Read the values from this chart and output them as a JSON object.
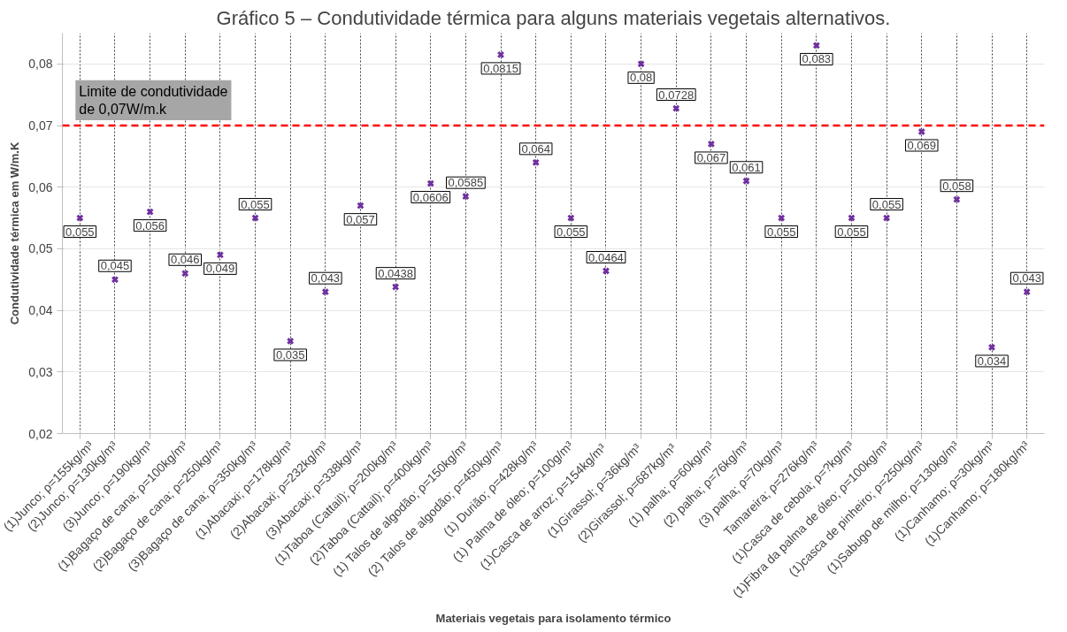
{
  "chart_data": {
    "type": "scatter",
    "title": "Gráfico 5 – Condutividade térmica para alguns materiais vegetais alternativos.",
    "xlabel": "Materiais vegetais para isolamento térmico",
    "ylabel": "Condutividade térmica em W/m.K",
    "categories": [
      "(1)Junco; ρ=155kg/m³",
      "(2)Junco; ρ=130kg/m³",
      "(3)Junco; ρ=190kg/m³",
      "(1)Bagaço de cana; ρ=100kg/m³",
      "(2)Bagaço de cana; ρ=250kg/m³",
      "(3)Bagaço de cana; ρ=350kg/m³",
      "(1)Abacaxi; ρ=178kg/m³",
      "(2)Abacaxi; ρ=232kg/m³",
      "(3)Abacaxi; ρ=338kg/m³",
      "(1)Taboa (Cattail); ρ=200kg/m³",
      "(2)Taboa (Cattail); ρ=400kg/m³",
      "(1) Talos de algodão; ρ=150kg/m³",
      "(2) Talos de algodão; ρ=450kg/m³",
      "(1) Durião; ρ=428kg/m³",
      "(1) Palma de óleo; ρ=100g/m³",
      "(1)Casca de arroz;  ρ=154kg/m³",
      "(1)Girassol;  ρ=36kg/m³",
      "(2)Girassol;  ρ=687kg/m³",
      "(1) palha; ρ=60kg/m³",
      "(2) palha; ρ=76kg/m³",
      "(3) palha; ρ=70kg/m³",
      "Tamareira; ρ=276kg/m³",
      "(1)Casca de cebola; ρ=?kg/m³",
      "(1)Fibra da palma de óleo; ρ=100kg/m³",
      "(1)casca de pinheiro; ρ=250kg/m³",
      "(1)Sabugo de milho; ρ=130kg/m³",
      "(1)Canhamo; ρ=30kg/m³",
      "(1)Canhamo; ρ=180kg/m³"
    ],
    "series": [
      {
        "color": "#7030a0",
        "values": [
          0.055,
          0.045,
          0.056,
          0.046,
          0.049,
          0.055,
          0.035,
          0.043,
          0.057,
          0.0438,
          0.0606,
          0.0585,
          0.0815,
          0.064,
          0.055,
          0.0464,
          0.08,
          0.0728,
          0.067,
          0.061,
          0.055,
          0.083,
          0.055,
          0.055,
          0.069,
          0.058,
          0.034,
          0.043
        ],
        "value_labels": [
          "0,055",
          "0,045",
          "0,056",
          "0,046",
          "0,049",
          "0,055",
          "0,035",
          "0,043",
          "0,057",
          "0,0438",
          "0,0606",
          "0,0585",
          "0,0815",
          "0,064",
          "0,055",
          "0,0464",
          "0,08",
          "0,0728",
          "0,067",
          "0,061",
          "0,055",
          "0,083",
          "0,055",
          "0,055",
          "0,069",
          "0,058",
          "0,034",
          "0,043"
        ]
      }
    ],
    "ylim": [
      0.02,
      0.085
    ],
    "yticks": [
      {
        "value": 0.02,
        "label": "0,02"
      },
      {
        "value": 0.03,
        "label": "0,03"
      },
      {
        "value": 0.04,
        "label": "0,04"
      },
      {
        "value": 0.05,
        "label": "0,05"
      },
      {
        "value": 0.06,
        "label": "0,06"
      },
      {
        "value": 0.07,
        "label": "0,07"
      },
      {
        "value": 0.08,
        "label": "0,08"
      }
    ],
    "ref_lines": [
      {
        "axis": "y",
        "value": 0.07,
        "label": "Limite de condutividade\nde 0,07W/m.k",
        "color": "#ff0000",
        "line_style": "dashed"
      }
    ],
    "grid": true,
    "marker": "cross"
  }
}
